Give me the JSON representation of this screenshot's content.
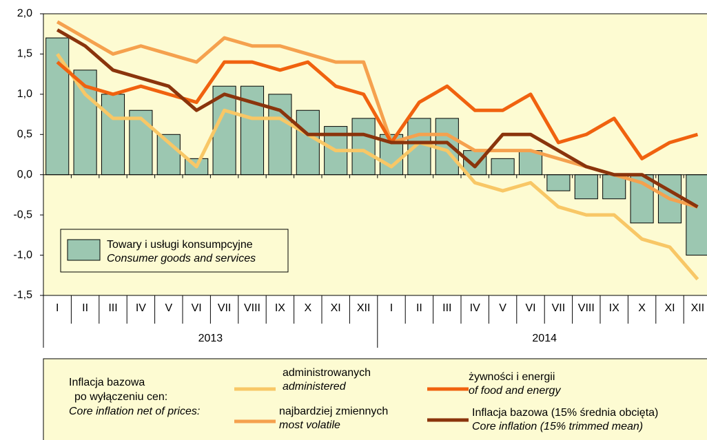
{
  "chart_data": {
    "type": "bar-line",
    "categories": [
      "I",
      "II",
      "III",
      "IV",
      "V",
      "VI",
      "VII",
      "VIII",
      "IX",
      "X",
      "XI",
      "XII",
      "I",
      "II",
      "III",
      "IV",
      "V",
      "VI",
      "VII",
      "VIII",
      "IX",
      "X",
      "XI",
      "XII"
    ],
    "years": [
      {
        "label": "2013",
        "span": [
          0,
          12
        ]
      },
      {
        "label": "2014",
        "span": [
          12,
          24
        ]
      }
    ],
    "ylim": [
      -1.5,
      2.0
    ],
    "yticks": [
      {
        "value": -1.5,
        "label": "-1,5"
      },
      {
        "value": -1.0,
        "label": "-1,0"
      },
      {
        "value": -0.5,
        "label": "-0,5"
      },
      {
        "value": 0,
        "label": "0,0"
      },
      {
        "value": 0.5,
        "label": "0,5"
      },
      {
        "value": 1.0,
        "label": "1,0"
      },
      {
        "value": 1.5,
        "label": "1,5"
      },
      {
        "value": 2.0,
        "label": "2,0"
      }
    ],
    "bar_series": {
      "name": "Towary i usługi konsumpcyjne",
      "name_en": "Consumer goods and services",
      "color": "#9cc7b1",
      "values": [
        1.7,
        1.3,
        1.0,
        0.8,
        0.5,
        0.2,
        1.1,
        1.1,
        1.0,
        0.8,
        0.6,
        0.7,
        0.5,
        0.7,
        0.7,
        0.3,
        0.2,
        0.3,
        -0.2,
        -0.3,
        -0.3,
        -0.6,
        -0.6,
        -1.0
      ]
    },
    "legend_heading": [
      "Inflacja bazowa",
      "po wyłączeniu cen:",
      "Core inflation net of prices:"
    ],
    "series": [
      {
        "name": "administrowanych",
        "name_en": "administered",
        "color": "#f8c766",
        "values": [
          1.5,
          1.0,
          0.7,
          0.7,
          0.4,
          0.1,
          0.8,
          0.7,
          0.7,
          0.5,
          0.3,
          0.3,
          0.1,
          0.4,
          0.3,
          -0.1,
          -0.2,
          -0.1,
          -0.4,
          -0.5,
          -0.5,
          -0.8,
          -0.9,
          -1.3
        ]
      },
      {
        "name": "najbardziej zmiennych",
        "name_en": "most volatile",
        "color": "#f5a14e",
        "values": [
          1.9,
          1.7,
          1.5,
          1.6,
          1.5,
          1.4,
          1.7,
          1.6,
          1.6,
          1.5,
          1.4,
          1.4,
          0.4,
          0.5,
          0.5,
          0.3,
          0.3,
          0.3,
          0.2,
          0.1,
          0.0,
          -0.1,
          -0.3,
          -0.4
        ]
      },
      {
        "name": "żywności i energii",
        "name_en": "of food and energy",
        "color": "#f0620f",
        "values": [
          1.4,
          1.1,
          1.0,
          1.1,
          1.0,
          0.9,
          1.4,
          1.4,
          1.3,
          1.4,
          1.1,
          1.0,
          0.4,
          0.9,
          1.1,
          0.8,
          0.8,
          1.0,
          0.4,
          0.5,
          0.7,
          0.2,
          0.4,
          0.5
        ]
      },
      {
        "name": "Inflacja bazowa (15% średnia obcięta)",
        "name_en": "Core inflation (15% trimmed mean)",
        "color": "#8a340c",
        "values": [
          1.8,
          1.6,
          1.3,
          1.2,
          1.1,
          0.8,
          1.0,
          0.9,
          0.8,
          0.5,
          0.5,
          0.5,
          0.4,
          0.4,
          0.4,
          0.1,
          0.5,
          0.5,
          0.3,
          0.1,
          0.0,
          0.0,
          -0.2,
          -0.4
        ]
      }
    ]
  }
}
